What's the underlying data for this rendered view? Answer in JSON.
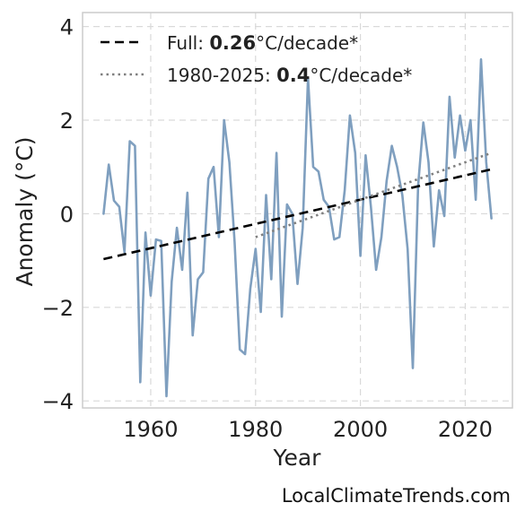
{
  "chart_data": {
    "type": "line",
    "title": "",
    "xlabel": "Year",
    "ylabel": "Anomaly (°C)",
    "xlim": [
      1947,
      2029
    ],
    "ylim": [
      -4.15,
      4.3
    ],
    "xticks": [
      1960,
      1980,
      2000,
      2020
    ],
    "yticks": [
      -4,
      -2,
      0,
      2,
      4
    ],
    "grid": true,
    "legend_position": "top-left",
    "series": [
      {
        "color": "#7f9fbf",
        "style": "solid",
        "x": [
          1951,
          1952,
          1953,
          1954,
          1955,
          1956,
          1957,
          1958,
          1959,
          1960,
          1961,
          1962,
          1963,
          1964,
          1965,
          1966,
          1967,
          1968,
          1969,
          1970,
          1971,
          1972,
          1973,
          1974,
          1975,
          1976,
          1977,
          1978,
          1979,
          1980,
          1981,
          1982,
          1983,
          1984,
          1985,
          1986,
          1987,
          1988,
          1989,
          1990,
          1991,
          1992,
          1993,
          1994,
          1995,
          1996,
          1997,
          1998,
          1999,
          2000,
          2001,
          2002,
          2003,
          2004,
          2005,
          2006,
          2007,
          2008,
          2009,
          2010,
          2011,
          2012,
          2013,
          2014,
          2015,
          2016,
          2017,
          2018,
          2019,
          2020,
          2021,
          2022,
          2023,
          2024,
          2025
        ],
        "values": [
          0.0,
          1.05,
          0.28,
          0.15,
          -0.82,
          1.55,
          1.45,
          -3.6,
          -0.4,
          -1.75,
          -0.55,
          -0.58,
          -3.9,
          -1.45,
          -0.3,
          -1.2,
          0.45,
          -2.6,
          -1.4,
          -1.25,
          0.75,
          1.0,
          -0.5,
          2.0,
          1.1,
          -0.6,
          -2.9,
          -3.0,
          -1.6,
          -0.75,
          -2.1,
          0.4,
          -1.4,
          1.3,
          -2.2,
          0.2,
          0.0,
          -1.5,
          -0.3,
          2.9,
          1.0,
          0.9,
          0.3,
          0.15,
          -0.55,
          -0.5,
          0.5,
          2.1,
          1.3,
          -0.9,
          1.25,
          0.15,
          -1.2,
          -0.5,
          0.7,
          1.45,
          1.0,
          0.4,
          -0.75,
          -3.3,
          0.6,
          1.95,
          1.1,
          -0.7,
          0.5,
          -0.05,
          2.5,
          1.2,
          2.1,
          1.35,
          2.0,
          0.3,
          3.3,
          1.1,
          -0.1
        ]
      }
    ],
    "trends": [
      {
        "name": "Full",
        "rate": "0.26",
        "unit": "°C/decade*",
        "color": "#000000",
        "style": "dashed",
        "x": [
          1951,
          2025
        ],
        "y": [
          -0.97,
          0.95
        ]
      },
      {
        "name": "1980-2025",
        "rate": "0.4",
        "unit": "°C/decade*",
        "color": "#808080",
        "style": "dotted",
        "x": [
          1980,
          2025
        ],
        "y": [
          -0.5,
          1.3
        ]
      }
    ]
  },
  "watermark": "LocalClimateTrends.com"
}
